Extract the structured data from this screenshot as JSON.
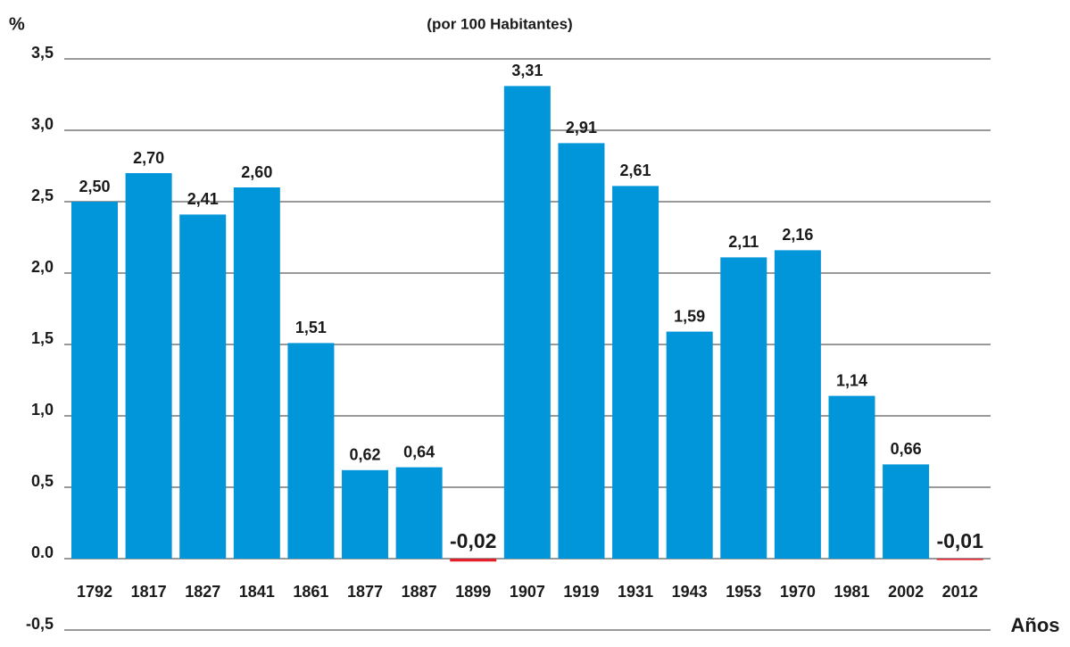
{
  "chart_data": {
    "type": "bar",
    "subtitle": "(por 100 Habitantes)",
    "y_label": "%",
    "x_label": "Años",
    "categories": [
      "1792",
      "1817",
      "1827",
      "1841",
      "1861",
      "1877",
      "1887",
      "1899",
      "1907",
      "1919",
      "1931",
      "1943",
      "1953",
      "1970",
      "1981",
      "2002",
      "2012"
    ],
    "values": [
      2.5,
      2.7,
      2.41,
      2.6,
      1.51,
      0.62,
      0.64,
      -0.02,
      3.31,
      2.91,
      2.61,
      1.59,
      2.11,
      2.16,
      1.14,
      0.66,
      -0.01
    ],
    "value_labels": [
      "2,50",
      "2,70",
      "2,41",
      "2,60",
      "1,51",
      "0,62",
      "0,64",
      "-0,02",
      "3,31",
      "2,91",
      "2,61",
      "1,59",
      "2,11",
      "2,16",
      "1,14",
      "0,66",
      "-0,01"
    ],
    "color": "#0096d9",
    "negative_color": "#e3202a",
    "ylim": [
      -0.5,
      3.5
    ],
    "yticks": [
      {
        "value": -0.5,
        "label": "-0,5"
      },
      {
        "value": 0,
        "label": "0.0"
      },
      {
        "value": 0.5,
        "label": "0,5"
      },
      {
        "value": 1,
        "label": "1,0"
      },
      {
        "value": 1.5,
        "label": "1,5"
      },
      {
        "value": 2,
        "label": "2,0"
      },
      {
        "value": 2.5,
        "label": "2,5"
      },
      {
        "value": 3,
        "label": "3,0"
      },
      {
        "value": 3.5,
        "label": "3,5"
      }
    ],
    "grid": true
  }
}
